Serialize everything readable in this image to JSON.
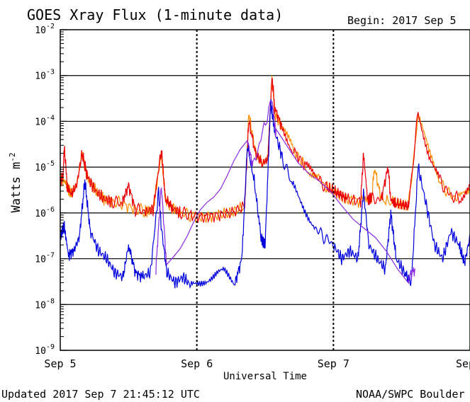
{
  "chart_data": {
    "type": "line",
    "title": "GOES Xray Flux (1-minute data)",
    "begin_label": "Begin:  2017 Sep 5",
    "ylabel": "Watts m",
    "ylabel_exponent": "-2",
    "xlabel": "Universal Time",
    "footer_left": "Updated 2017 Sep  7 21:45:12 UTC",
    "footer_right": "NOAA/SWPC Boulder",
    "y_scale": "log",
    "ylim": [
      1e-09,
      0.01
    ],
    "y_ticks": [
      {
        "value": 1e-09,
        "base": "10",
        "exp": "-9"
      },
      {
        "value": 1e-08,
        "base": "10",
        "exp": "-8"
      },
      {
        "value": 1e-07,
        "base": "10",
        "exp": "-7"
      },
      {
        "value": 1e-06,
        "base": "10",
        "exp": "-6"
      },
      {
        "value": 1e-05,
        "base": "10",
        "exp": "-5"
      },
      {
        "value": 0.0001,
        "base": "10",
        "exp": "-4"
      },
      {
        "value": 0.001,
        "base": "10",
        "exp": "-3"
      },
      {
        "value": 0.01,
        "base": "10",
        "exp": "-2"
      }
    ],
    "gridlines_y": [
      1e-08,
      1e-07,
      1e-06,
      1e-05,
      0.0001,
      0.001
    ],
    "x_unit": "days since 2017 Sep 5 00:00 UTC",
    "xlim": [
      0,
      3
    ],
    "x_ticks": [
      {
        "value": 0,
        "label": "Sep 5"
      },
      {
        "value": 1,
        "label": "Sep 6"
      },
      {
        "value": 2,
        "label": "Sep 7"
      },
      {
        "value": 3,
        "label": "Sep"
      }
    ],
    "series": [
      {
        "color": "#ff8c00",
        "points": [
          [
            0,
            5e-06
          ],
          [
            0.02,
            5.5e-06
          ],
          [
            0.05,
            4e-06
          ],
          [
            0.08,
            2.5e-06
          ],
          [
            0.12,
            4e-06
          ],
          [
            0.16,
            2e-05
          ],
          [
            0.2,
            6e-06
          ],
          [
            0.26,
            3e-06
          ],
          [
            0.32,
            2e-06
          ],
          [
            0.38,
            1.8e-06
          ],
          [
            0.45,
            1.6e-06
          ],
          [
            0.55,
            1.2e-06
          ],
          [
            0.62,
            1.1e-06
          ],
          [
            0.68,
            1.2e-06
          ],
          [
            0.74,
            2e-05
          ],
          [
            0.77,
            2e-06
          ],
          [
            0.82,
            1.3e-06
          ],
          [
            0.88,
            1e-06
          ],
          [
            0.95,
            9e-07
          ],
          [
            1.05,
            8e-07
          ],
          [
            1.15,
            9e-07
          ],
          [
            1.25,
            1e-06
          ],
          [
            1.35,
            1.4e-06
          ],
          [
            1.38,
            0.00015
          ],
          [
            1.43,
            2e-05
          ],
          [
            1.48,
            1.2e-05
          ],
          [
            1.52,
            1.5e-05
          ],
          [
            1.55,
            0.0009
          ],
          [
            1.57,
            0.00015
          ],
          [
            1.62,
            8e-05
          ],
          [
            1.7,
            2.5e-05
          ],
          [
            1.8,
            1e-05
          ],
          [
            1.88,
            6e-06
          ],
          [
            1.95,
            3.5e-06
          ],
          [
            2.0,
            3e-06
          ],
          [
            2.05,
            2.5e-06
          ],
          [
            2.1,
            2e-06
          ],
          [
            2.2,
            1.8e-06
          ],
          [
            2.28,
            2e-06
          ],
          [
            2.3,
            1e-05
          ],
          [
            2.35,
            2e-06
          ],
          [
            2.45,
            1.6e-06
          ],
          [
            2.5,
            1.5e-06
          ],
          [
            2.55,
            1.4e-06
          ],
          [
            2.62,
            0.00014
          ],
          [
            2.7,
            2e-05
          ],
          [
            2.78,
            5e-06
          ],
          [
            2.85,
            2.5e-06
          ],
          [
            2.92,
            2e-06
          ],
          [
            3.0,
            3e-06
          ]
        ]
      },
      {
        "color": "#e8000b",
        "points": [
          [
            0,
            5e-06
          ],
          [
            0.02,
            6e-06
          ],
          [
            0.03,
            3e-05
          ],
          [
            0.05,
            4e-06
          ],
          [
            0.08,
            2.5e-06
          ],
          [
            0.12,
            4e-06
          ],
          [
            0.16,
            2e-05
          ],
          [
            0.2,
            6e-06
          ],
          [
            0.26,
            3e-06
          ],
          [
            0.32,
            2e-06
          ],
          [
            0.38,
            1.8e-06
          ],
          [
            0.45,
            1.6e-06
          ],
          [
            0.5,
            4e-06
          ],
          [
            0.55,
            1.2e-06
          ],
          [
            0.62,
            1.1e-06
          ],
          [
            0.68,
            1.2e-06
          ],
          [
            0.74,
            2.5e-05
          ],
          [
            0.77,
            2e-06
          ],
          [
            0.82,
            1.3e-06
          ],
          [
            0.88,
            1e-06
          ],
          [
            0.95,
            9e-07
          ],
          [
            1.05,
            8e-07
          ],
          [
            1.15,
            9e-07
          ],
          [
            1.25,
            1e-06
          ],
          [
            1.35,
            1.4e-06
          ],
          [
            1.38,
            0.0001
          ],
          [
            1.43,
            2e-05
          ],
          [
            1.48,
            1.2e-05
          ],
          [
            1.52,
            1.5e-05
          ],
          [
            1.55,
            0.001
          ],
          [
            1.57,
            0.0002
          ],
          [
            1.62,
            8e-05
          ],
          [
            1.7,
            2.5e-05
          ],
          [
            1.8,
            1e-05
          ],
          [
            1.88,
            6e-06
          ],
          [
            1.95,
            3.5e-06
          ],
          [
            2.0,
            3e-06
          ],
          [
            2.05,
            2.5e-06
          ],
          [
            2.1,
            2e-06
          ],
          [
            2.2,
            1.8e-06
          ],
          [
            2.22,
            2e-05
          ],
          [
            2.25,
            2e-06
          ],
          [
            2.28,
            2e-06
          ],
          [
            2.35,
            2e-06
          ],
          [
            2.4,
            1e-05
          ],
          [
            2.42,
            2e-06
          ],
          [
            2.45,
            1.6e-06
          ],
          [
            2.5,
            1.5e-06
          ],
          [
            2.55,
            1.4e-06
          ],
          [
            2.62,
            0.00015
          ],
          [
            2.7,
            2e-05
          ],
          [
            2.78,
            5e-06
          ],
          [
            2.85,
            2.5e-06
          ],
          [
            2.92,
            2e-06
          ],
          [
            3.0,
            4e-06
          ]
        ]
      },
      {
        "color": "#0000dd",
        "points": [
          [
            0,
            3e-07
          ],
          [
            0.03,
            5e-07
          ],
          [
            0.06,
            1.2e-07
          ],
          [
            0.1,
            1.5e-07
          ],
          [
            0.14,
            3e-07
          ],
          [
            0.18,
            5e-06
          ],
          [
            0.22,
            4e-07
          ],
          [
            0.28,
            1.5e-07
          ],
          [
            0.34,
            1e-07
          ],
          [
            0.4,
            5e-08
          ],
          [
            0.46,
            4e-08
          ],
          [
            0.5,
            2e-07
          ],
          [
            0.55,
            5e-08
          ],
          [
            0.6,
            4e-08
          ],
          [
            0.66,
            5e-08
          ],
          [
            0.72,
            3e-06
          ],
          [
            0.74,
            5e-07
          ],
          [
            0.78,
            5e-08
          ],
          [
            0.84,
            3e-08
          ],
          [
            0.9,
            4e-08
          ],
          [
            0.96,
            2.5e-08
          ],
          [
            1.04,
            3.5e-08
          ],
          [
            1.12,
            4e-08
          ],
          [
            1.2,
            5e-08
          ],
          [
            1.28,
            3e-08
          ],
          [
            1.33,
            1e-07
          ],
          [
            1.37,
            3e-05
          ],
          [
            1.42,
            5e-06
          ],
          [
            1.47,
            3e-07
          ],
          [
            1.5,
            2e-07
          ],
          [
            1.54,
            0.00025
          ],
          [
            1.57,
            6e-05
          ],
          [
            1.63,
            1.5e-05
          ],
          [
            1.7,
            4e-06
          ],
          [
            1.78,
            1.5e-06
          ],
          [
            1.86,
            5e-07
          ],
          [
            1.93,
            3e-07
          ],
          [
            2.0,
            2e-07
          ],
          [
            2.06,
            1e-07
          ],
          [
            2.12,
            1.5e-07
          ],
          [
            2.18,
            1e-07
          ],
          [
            2.22,
            3e-06
          ],
          [
            2.26,
            2e-07
          ],
          [
            2.32,
            1e-07
          ],
          [
            2.38,
            6e-08
          ],
          [
            2.42,
            1e-06
          ],
          [
            2.46,
            1e-07
          ],
          [
            2.52,
            5e-08
          ],
          [
            2.57,
            3e-08
          ],
          [
            2.62,
            1e-05
          ],
          [
            2.68,
            1.5e-06
          ],
          [
            2.74,
            2e-07
          ],
          [
            2.8,
            1e-07
          ],
          [
            2.86,
            4e-07
          ],
          [
            2.92,
            2e-07
          ],
          [
            2.96,
            8e-08
          ],
          [
            3.0,
            3e-07
          ]
        ]
      },
      {
        "color": "#8a2be2",
        "points": [
          [
            0.7,
            6e-08
          ],
          [
            0.74,
            4e-06
          ],
          [
            0.78,
            6e-08
          ],
          [
            1.37,
            4e-05
          ],
          [
            1.41,
            1e-05
          ],
          [
            1.55,
            0.0003
          ],
          [
            1.58,
            5e-05
          ],
          [
            2.55,
            4e-08
          ],
          [
            2.6,
            6e-08
          ]
        ]
      }
    ]
  }
}
